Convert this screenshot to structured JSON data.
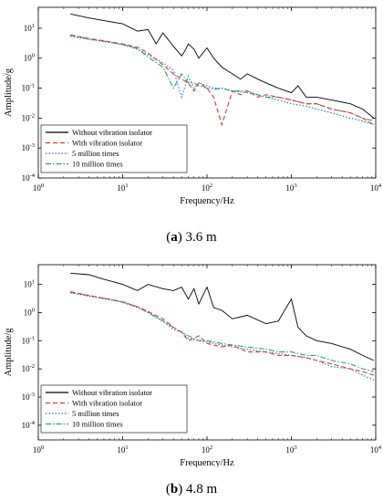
{
  "chart_data": [
    {
      "type": "line",
      "title": "",
      "panel_label": "a",
      "caption": "3.6 m",
      "xlabel": "Frequency/Hz",
      "ylabel": "Amplitude/g",
      "xscale": "log",
      "yscale": "log",
      "xlim": [
        1,
        10000
      ],
      "ylim": [
        0.0001,
        50
      ],
      "x_ticks": [
        "10^0",
        "10^1",
        "10^2",
        "10^3",
        "10^4"
      ],
      "y_ticks": [
        "10^-4",
        "10^-3",
        "10^-2",
        "10^-1",
        "10^0",
        "10^1"
      ],
      "legend_position": "lower-left",
      "grid": false,
      "series": [
        {
          "name": "Without vibration isolator",
          "color": "#000000",
          "style": "solid",
          "x": [
            2.4,
            4,
            6,
            10,
            15,
            20,
            25,
            30,
            40,
            50,
            55,
            60,
            70,
            80,
            100,
            120,
            150,
            200,
            250,
            300,
            400,
            500,
            700,
            1000,
            1200,
            1500,
            2000,
            3000,
            5000,
            7000,
            9500
          ],
          "y": [
            30,
            22,
            18,
            14,
            8,
            9,
            3,
            7,
            2.5,
            1.2,
            1.8,
            3,
            2.0,
            1.0,
            2.2,
            1.0,
            0.5,
            0.3,
            0.2,
            0.3,
            0.2,
            0.15,
            0.1,
            0.07,
            0.12,
            0.05,
            0.05,
            0.04,
            0.03,
            0.02,
            0.01
          ]
        },
        {
          "name": "With vibration isolator",
          "color": "#e8332a",
          "style": "dashed",
          "x": [
            2.4,
            4,
            6,
            10,
            15,
            20,
            30,
            40,
            50,
            60,
            70,
            80,
            100,
            120,
            150,
            200,
            250,
            300,
            400,
            500,
            700,
            1000,
            1500,
            2000,
            3000,
            5000,
            7000,
            9500
          ],
          "y": [
            6,
            4.5,
            3.8,
            3,
            2.3,
            1.5,
            0.6,
            0.3,
            0.2,
            0.15,
            0.08,
            0.15,
            0.1,
            0.05,
            0.006,
            0.08,
            0.06,
            0.08,
            0.05,
            0.06,
            0.05,
            0.04,
            0.03,
            0.03,
            0.02,
            0.015,
            0.01,
            0.006
          ]
        },
        {
          "name": "5 million times",
          "color": "#1f6fd1",
          "style": "dotted",
          "x": [
            2.4,
            4,
            6,
            10,
            15,
            20,
            30,
            40,
            50,
            60,
            70,
            80,
            100,
            120,
            150,
            200,
            300,
            400,
            500,
            700,
            1000,
            1500,
            2000,
            3000,
            5000,
            7000,
            9500
          ],
          "y": [
            5.5,
            4.2,
            3.6,
            2.8,
            2.0,
            1.3,
            0.7,
            0.4,
            0.05,
            0.25,
            0.1,
            0.15,
            0.12,
            0.1,
            0.1,
            0.08,
            0.07,
            0.06,
            0.05,
            0.04,
            0.03,
            0.025,
            0.02,
            0.015,
            0.01,
            0.008,
            0.006
          ]
        },
        {
          "name": "10 million times",
          "color": "#22a86b",
          "style": "dashdot",
          "x": [
            2.4,
            4,
            6,
            10,
            15,
            20,
            30,
            40,
            50,
            60,
            70,
            80,
            100,
            120,
            150,
            200,
            300,
            400,
            500,
            700,
            1000,
            1500,
            2000,
            3000,
            5000,
            7000,
            9500
          ],
          "y": [
            5.8,
            4.4,
            3.7,
            2.9,
            2.1,
            1.1,
            0.5,
            0.1,
            0.3,
            0.15,
            0.15,
            0.12,
            0.1,
            0.09,
            0.1,
            0.08,
            0.08,
            0.06,
            0.05,
            0.05,
            0.04,
            0.03,
            0.03,
            0.02,
            0.015,
            0.01,
            0.008
          ]
        }
      ]
    },
    {
      "type": "line",
      "title": "",
      "panel_label": "b",
      "caption": "4.8 m",
      "xlabel": "Frequency/Hz",
      "ylabel": "Amplitude/g",
      "xscale": "log",
      "yscale": "log",
      "xlim": [
        1,
        10000
      ],
      "ylim": [
        3e-05,
        50
      ],
      "x_ticks": [
        "10^0",
        "10^1",
        "10^2",
        "10^3",
        "10^4"
      ],
      "y_ticks": [
        "10^-4",
        "10^-3",
        "10^-2",
        "10^-1",
        "10^0",
        "10^1"
      ],
      "legend_position": "lower-left",
      "grid": false,
      "series": [
        {
          "name": "Without vibration isolator",
          "color": "#000000",
          "style": "solid",
          "x": [
            2.4,
            4,
            6,
            8,
            10,
            15,
            20,
            30,
            40,
            50,
            60,
            70,
            80,
            100,
            120,
            150,
            200,
            300,
            500,
            700,
            1000,
            1200,
            1500,
            2000,
            3000,
            5000,
            7000,
            9500
          ],
          "y": [
            25,
            22,
            15,
            12,
            10,
            6,
            10,
            7,
            6,
            8,
            3,
            7,
            2,
            8,
            1.5,
            1.2,
            0.6,
            0.8,
            0.4,
            0.5,
            3,
            0.3,
            0.15,
            0.1,
            0.08,
            0.05,
            0.03,
            0.02
          ]
        },
        {
          "name": "With vibration isolator",
          "color": "#e8332a",
          "style": "dashed",
          "x": [
            2.4,
            4,
            6,
            10,
            15,
            20,
            30,
            40,
            50,
            60,
            80,
            100,
            150,
            200,
            300,
            500,
            700,
            1000,
            1500,
            2000,
            3000,
            5000,
            7000,
            9500
          ],
          "y": [
            5.5,
            4,
            3.2,
            2.4,
            1.6,
            1.1,
            0.6,
            0.3,
            0.2,
            0.1,
            0.15,
            0.08,
            0.06,
            0.07,
            0.04,
            0.04,
            0.03,
            0.03,
            0.025,
            0.02,
            0.015,
            0.01,
            0.008,
            0.006
          ]
        },
        {
          "name": "5 million times",
          "color": "#1f6fd1",
          "style": "dotted",
          "x": [
            2.4,
            4,
            6,
            10,
            15,
            20,
            30,
            40,
            50,
            60,
            80,
            100,
            150,
            200,
            300,
            500,
            700,
            1000,
            1500,
            2000,
            3000,
            5000,
            7000,
            9500
          ],
          "y": [
            5,
            3.8,
            3.1,
            2.3,
            1.5,
            1.0,
            0.5,
            0.25,
            0.2,
            0.12,
            0.1,
            0.09,
            0.07,
            0.06,
            0.05,
            0.04,
            0.035,
            0.03,
            0.025,
            0.02,
            0.012,
            0.01,
            0.006,
            0.004
          ]
        },
        {
          "name": "10 million times",
          "color": "#22a86b",
          "style": "dashdot",
          "x": [
            2.4,
            4,
            6,
            10,
            15,
            20,
            30,
            40,
            50,
            60,
            80,
            100,
            150,
            200,
            300,
            500,
            700,
            1000,
            1500,
            2000,
            3000,
            5000,
            7000,
            9500
          ],
          "y": [
            5.2,
            4,
            3.2,
            2.4,
            1.6,
            1.0,
            0.5,
            0.3,
            0.2,
            0.15,
            0.1,
            0.1,
            0.08,
            0.07,
            0.06,
            0.05,
            0.04,
            0.04,
            0.03,
            0.03,
            0.02,
            0.015,
            0.01,
            0.008
          ]
        }
      ]
    }
  ]
}
